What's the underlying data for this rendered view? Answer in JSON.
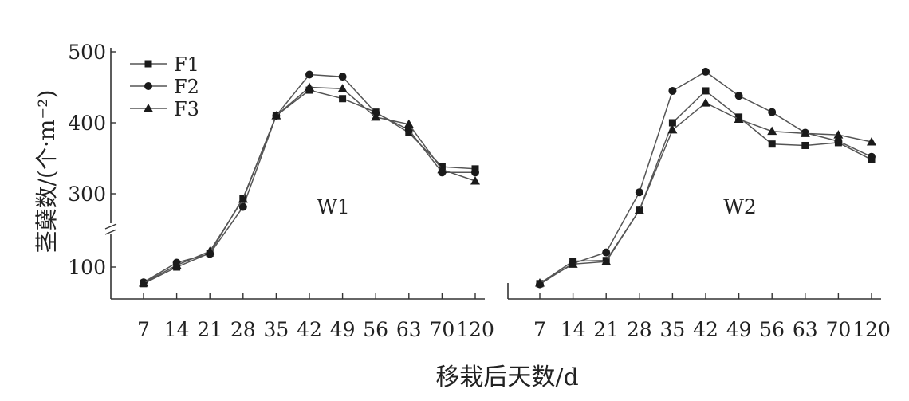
{
  "chart_data": {
    "type": "line",
    "xlabel": "移栽后天数/d",
    "ylabel": "茎蘖数/(个·m⁻²)",
    "x": [
      "7",
      "14",
      "21",
      "28",
      "35",
      "42",
      "49",
      "56",
      "63",
      "70",
      "120"
    ],
    "y_ticks": [
      "100",
      "300",
      "400",
      "500"
    ],
    "ylim": [
      50,
      500
    ],
    "y_axis_break": [
      100,
      300
    ],
    "legend": {
      "position": "top-left",
      "entries": [
        "F1",
        "F2",
        "F3"
      ]
    },
    "panels": [
      {
        "label": "W1",
        "series": [
          {
            "name": "F1",
            "marker": "square",
            "values": [
              74,
              100,
              138,
              288,
              410,
              446,
              434,
              415,
              386,
              338,
              335
            ]
          },
          {
            "name": "F2",
            "marker": "circle",
            "values": [
              76,
              112,
              136,
              264,
              410,
              468,
              465,
              414,
              390,
              330,
              330
            ]
          },
          {
            "name": "F3",
            "marker": "triangle",
            "values": [
              75,
              105,
              143,
              285,
              410,
              450,
              448,
              408,
              398,
              334,
              318
            ]
          }
        ]
      },
      {
        "label": "W2",
        "series": [
          {
            "name": "F1",
            "marker": "square",
            "values": [
              74,
              116,
              118,
              255,
              400,
              445,
              408,
              370,
              368,
              372,
              348
            ]
          },
          {
            "name": "F2",
            "marker": "circle",
            "values": [
              73,
              110,
              140,
              302,
              445,
              472,
              438,
              415,
              386,
              374,
              352
            ]
          },
          {
            "name": "F3",
            "marker": "triangle",
            "values": [
              75,
              108,
              115,
              255,
              390,
              428,
              405,
              388,
              385,
              383,
              373
            ]
          }
        ]
      }
    ],
    "colors": {
      "line": "#555555",
      "marker": "#1a1a1a",
      "axis": "#333333"
    }
  }
}
